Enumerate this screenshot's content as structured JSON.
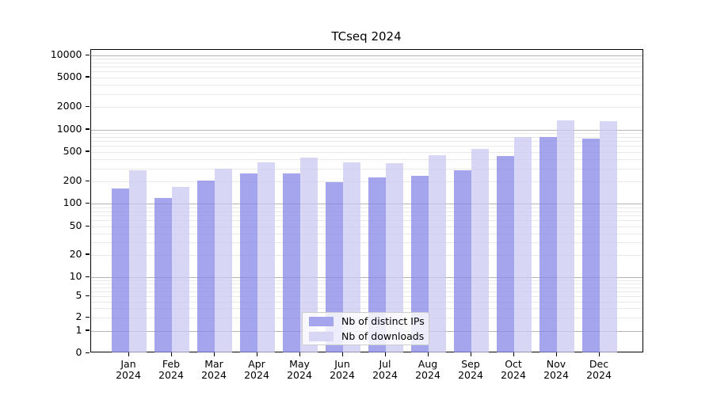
{
  "figure_title": "TCseq 2024",
  "chart_data": {
    "type": "bar",
    "title": "TCseq 2024",
    "categories": [
      "Jan 2024",
      "Feb 2024",
      "Mar 2024",
      "Apr 2024",
      "May 2024",
      "Jun 2024",
      "Jul 2024",
      "Aug 2024",
      "Sep 2024",
      "Oct 2024",
      "Nov 2024",
      "Dec 2024"
    ],
    "x_tick_months": [
      "Jan",
      "Feb",
      "Mar",
      "Apr",
      "May",
      "Jun",
      "Jul",
      "Aug",
      "Sep",
      "Oct",
      "Nov",
      "Dec"
    ],
    "x_tick_year": "2024",
    "series": [
      {
        "name": "Nb of distinct IPs",
        "color": "#a5a5ee",
        "values": [
          160,
          120,
          205,
          255,
          260,
          195,
          230,
          240,
          285,
          440,
          790,
          750
        ]
      },
      {
        "name": "Nb of downloads",
        "color": "#d7d7f5",
        "values": [
          280,
          170,
          295,
          360,
          420,
          360,
          355,
          450,
          550,
          800,
          1340,
          1290
        ]
      }
    ],
    "yscale": "symlog",
    "ylim": [
      0,
      10000
    ],
    "ytick_values": [
      0,
      1,
      2,
      5,
      10,
      20,
      50,
      100,
      200,
      500,
      1000,
      2000,
      5000,
      10000
    ],
    "ytick_labels": [
      "0",
      "1",
      "2",
      "5",
      "10",
      "20",
      "50",
      "100",
      "200",
      "500",
      "1000",
      "2000",
      "5000",
      "10000"
    ],
    "grid": true,
    "legend": {
      "position": "lower center",
      "items": [
        "Nb of distinct IPs",
        "Nb of downloads"
      ]
    },
    "colors": {
      "major_gridline": "#b4b4b4",
      "minor_gridline": "#e9e9e9",
      "axis": "#000000"
    }
  }
}
